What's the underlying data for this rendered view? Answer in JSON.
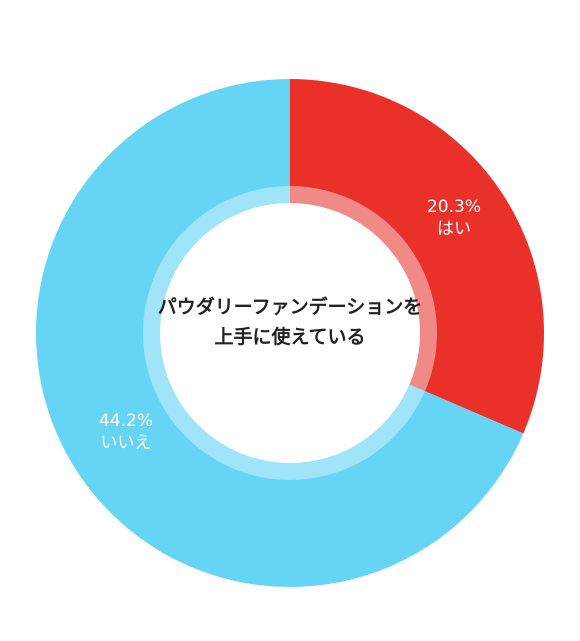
{
  "chart_data": {
    "type": "pie",
    "donut": true,
    "title_lines": [
      "パウダリーファンデーションを",
      "上手に使えている"
    ],
    "slices": [
      {
        "label": "はい",
        "value_text": "20.3%",
        "value": 20.3,
        "color": "#e9312a",
        "inner_ring_color": "#f08a86"
      },
      {
        "label": "いいえ",
        "value_text": "44.2%",
        "value": 44.2,
        "color": "#66d5f5",
        "inner_ring_color": "#9fe4f8"
      }
    ],
    "legend": "none"
  }
}
